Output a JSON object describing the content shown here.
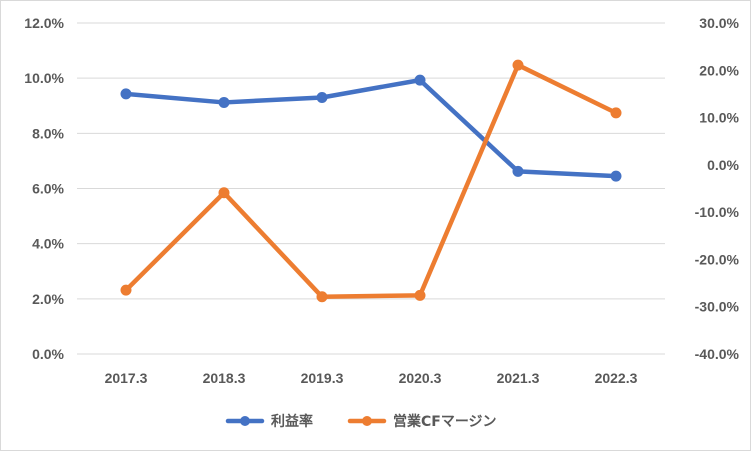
{
  "chart_data": {
    "type": "line",
    "title": "",
    "categories": [
      "2017.3",
      "2018.3",
      "2019.3",
      "2020.3",
      "2021.3",
      "2022.3"
    ],
    "series": [
      {
        "name": "利益率",
        "axis": "left",
        "color": "#4472C4",
        "values": [
          9.43,
          9.12,
          9.3,
          9.93,
          6.62,
          6.45
        ]
      },
      {
        "name": "営業CFマージン",
        "axis": "right",
        "color": "#ED7D31",
        "values": [
          -26.5,
          -5.9,
          -27.9,
          -27.6,
          21.1,
          11.0
        ]
      }
    ],
    "y_left": {
      "lim": [
        0,
        12
      ],
      "ticks": [
        0,
        2,
        4,
        6,
        8,
        10,
        12
      ],
      "tick_labels": [
        "0.0%",
        "2.0%",
        "4.0%",
        "6.0%",
        "8.0%",
        "10.0%",
        "12.0%"
      ]
    },
    "y_right": {
      "lim": [
        -40,
        30
      ],
      "ticks": [
        -40,
        -30,
        -20,
        -10,
        0,
        10,
        20,
        30
      ],
      "tick_labels": [
        "-40.0%",
        "-30.0%",
        "-20.0%",
        "-10.0%",
        "0.0%",
        "10.0%",
        "20.0%",
        "30.0%"
      ]
    },
    "grid": true,
    "legend_position": "bottom"
  }
}
